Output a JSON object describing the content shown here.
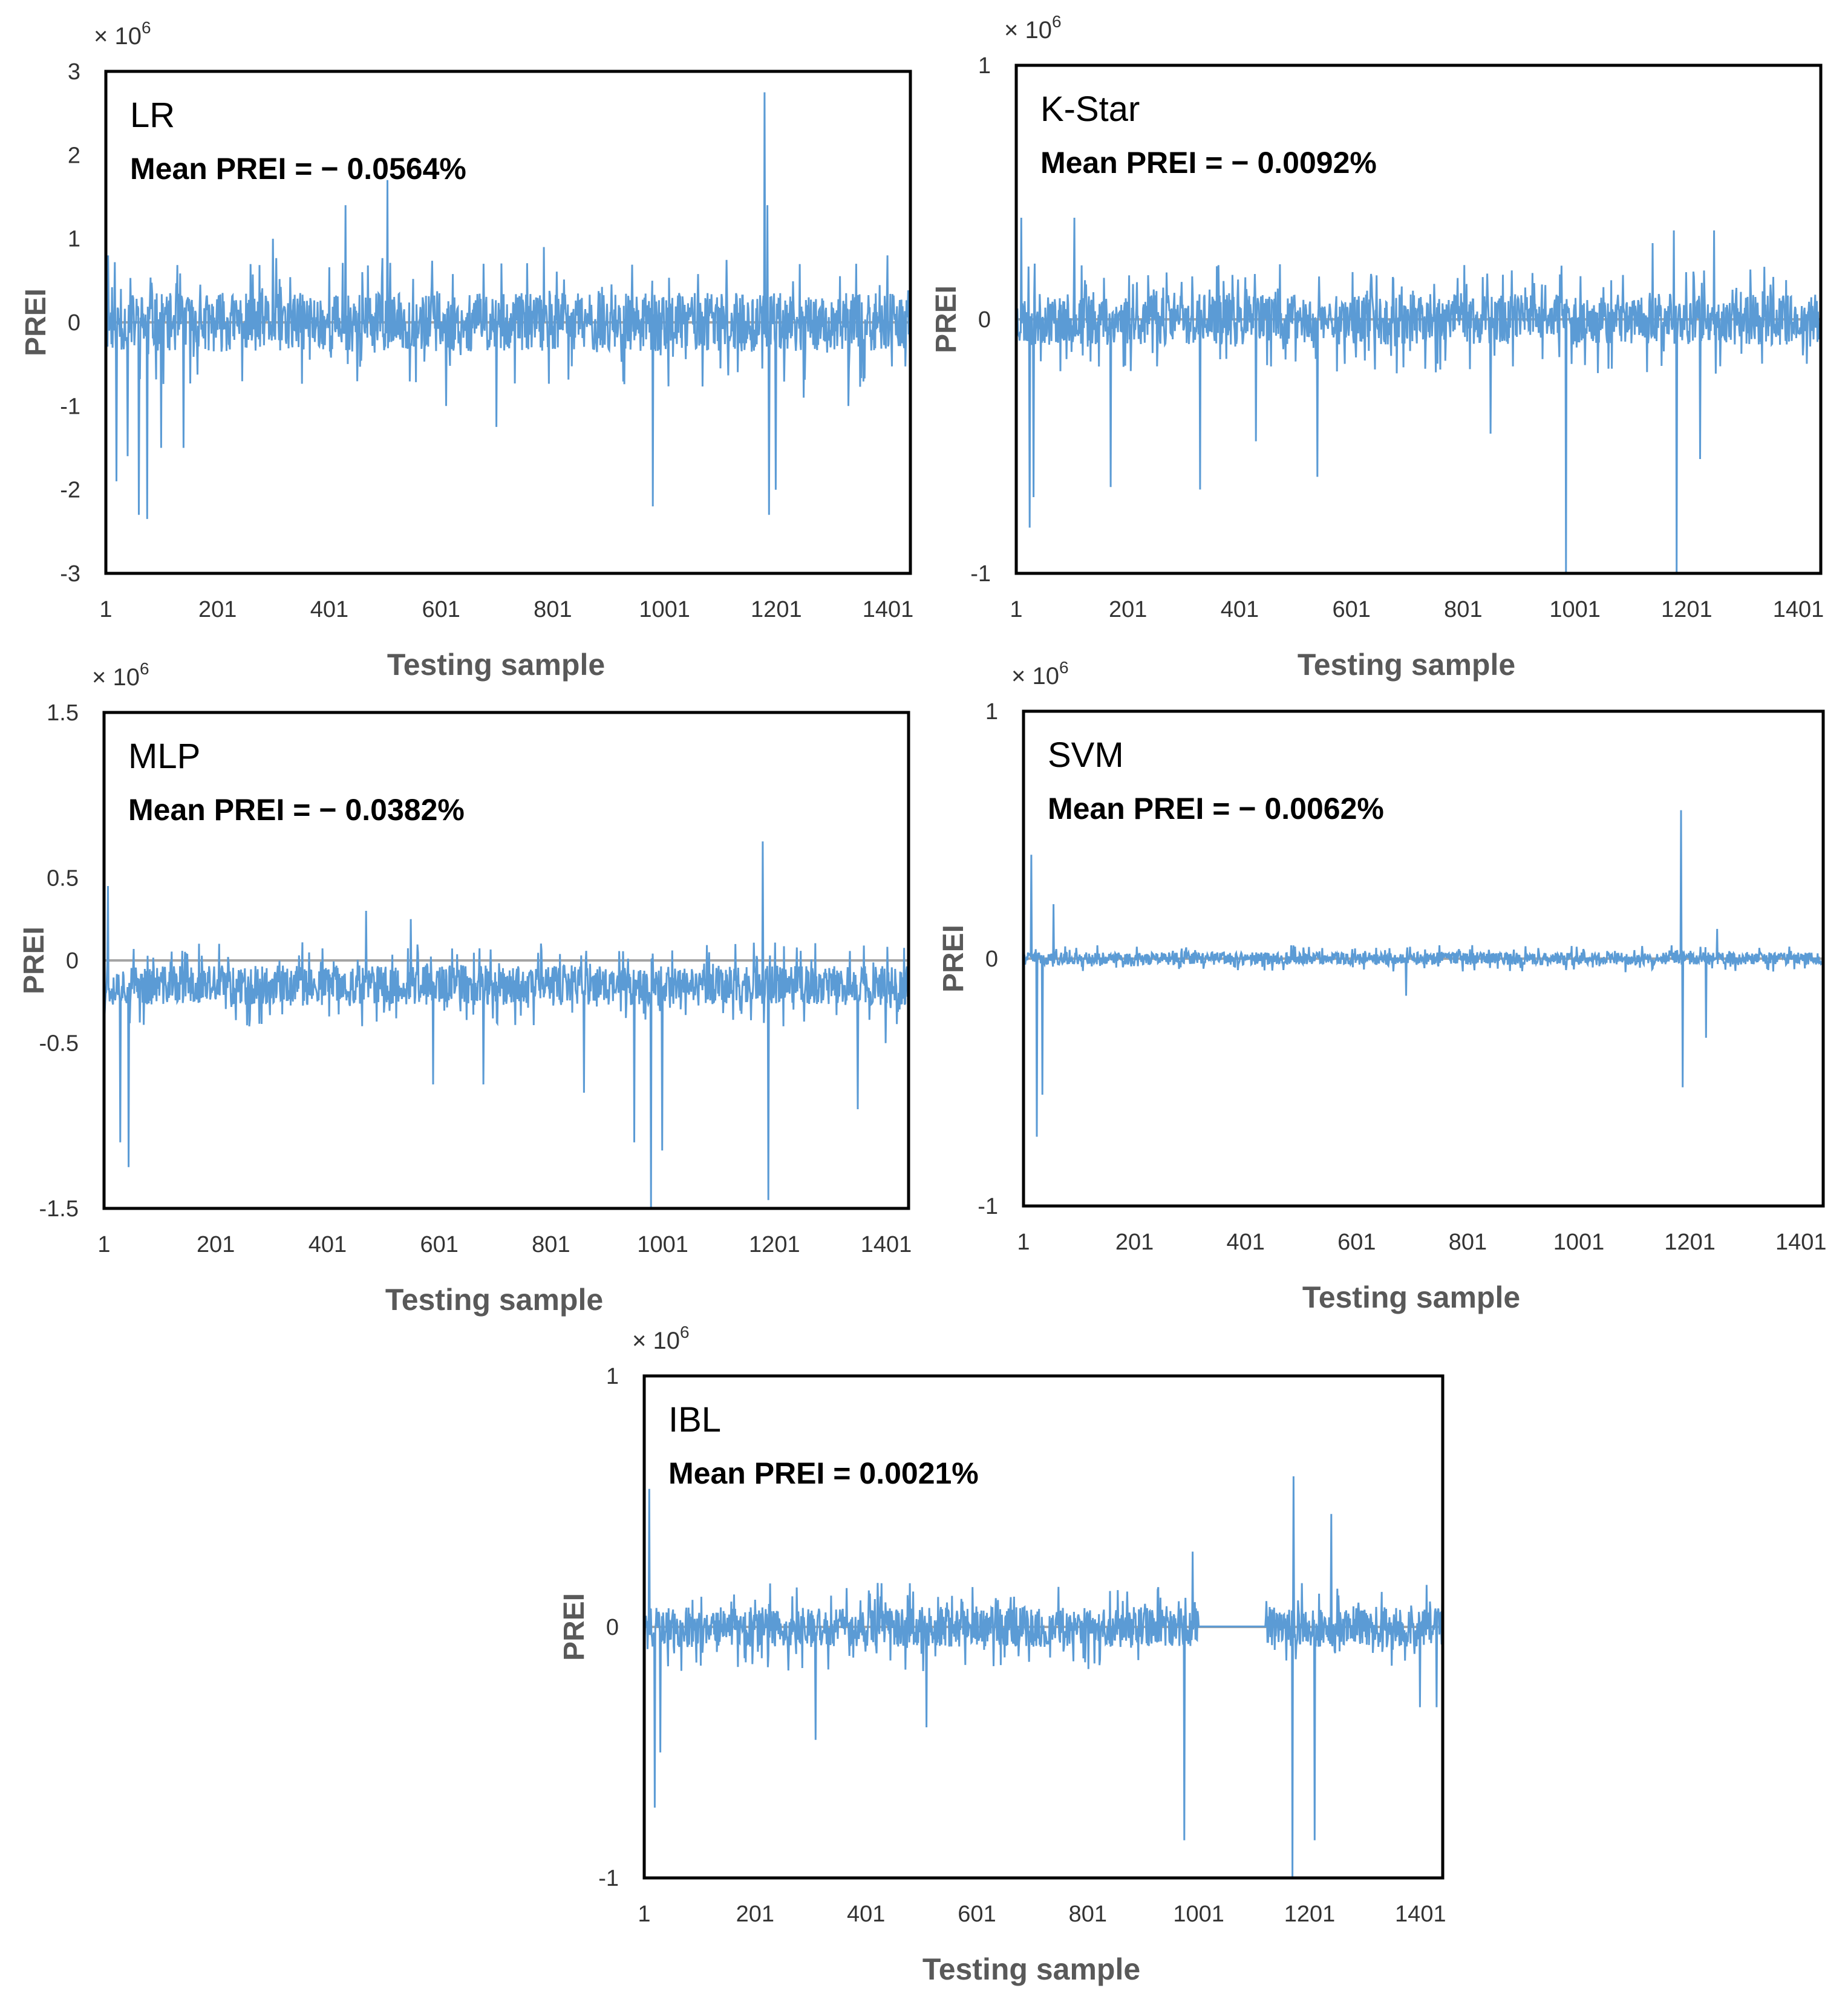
{
  "figure": {
    "background": "#ffffff",
    "line_color": "#5b9bd5",
    "zero_line_color": "#a5a5a5",
    "frame_color": "#000000"
  },
  "chart_data": [
    {
      "id": "lr",
      "type": "line",
      "model": "LR",
      "mean_label": "Mean PREI = − 0.0564%",
      "multiplier": "× 10",
      "multiplier_exp": "6",
      "ylabel": "PREI",
      "xlabel": "Testing sample",
      "ylim": [
        -3,
        3
      ],
      "yticks": [
        "3",
        "2",
        "1",
        "0",
        "-1",
        "-2",
        "-3"
      ],
      "ytick_values": [
        3,
        2,
        1,
        0,
        -1,
        -2,
        -3
      ],
      "xlim": [
        1,
        1441
      ],
      "xticks": [
        "1",
        "201",
        "401",
        "601",
        "801",
        "1001",
        "1201",
        "1401"
      ],
      "xtick_values": [
        1,
        201,
        401,
        601,
        801,
        1001,
        1201,
        1401
      ],
      "series": [
        {
          "name": "PREI",
          "noise_amplitude": 0.35,
          "seed": 11,
          "spikes": [
            [
              5,
              0.8
            ],
            [
              20,
              -1.9
            ],
            [
              40,
              -1.6
            ],
            [
              60,
              -2.3
            ],
            [
              75,
              -2.35
            ],
            [
              100,
              -1.5
            ],
            [
              140,
              -1.5
            ],
            [
              300,
              1.0
            ],
            [
              430,
              1.4
            ],
            [
              460,
              0.6
            ],
            [
              505,
              1.7
            ],
            [
              610,
              -1.0
            ],
            [
              700,
              -1.25
            ],
            [
              785,
              0.9
            ],
            [
              980,
              -2.2
            ],
            [
              1180,
              2.75
            ],
            [
              1185,
              1.4
            ],
            [
              1188,
              -2.3
            ],
            [
              1200,
              -2.0
            ],
            [
              1250,
              -0.9
            ],
            [
              1330,
              -1.0
            ],
            [
              1400,
              0.8
            ]
          ]
        }
      ]
    },
    {
      "id": "kstar",
      "type": "line",
      "model": "K-Star",
      "mean_label": "Mean PREI = − 0.0092%",
      "multiplier": "× 10",
      "multiplier_exp": "6",
      "ylabel": "PREI",
      "xlabel": "Testing sample",
      "ylim": [
        -1,
        1
      ],
      "yticks": [
        "1",
        "0",
        "-1"
      ],
      "ytick_values": [
        1,
        0,
        -1
      ],
      "xlim": [
        1,
        1441
      ],
      "xticks": [
        "1",
        "201",
        "401",
        "601",
        "801",
        "1001",
        "1201",
        "1401"
      ],
      "xtick_values": [
        1,
        201,
        401,
        601,
        801,
        1001,
        1201,
        1401
      ],
      "series": [
        {
          "name": "PREI",
          "noise_amplitude": 0.1,
          "seed": 23,
          "spikes": [
            [
              10,
              0.4
            ],
            [
              25,
              -0.82
            ],
            [
              32,
              -0.7
            ],
            [
              105,
              0.4
            ],
            [
              170,
              -0.66
            ],
            [
              330,
              -0.67
            ],
            [
              430,
              -0.48
            ],
            [
              540,
              -0.62
            ],
            [
              850,
              -0.45
            ],
            [
              985,
              -1.0
            ],
            [
              1178,
              0.35
            ],
            [
              1183,
              -1.0
            ],
            [
              1225,
              -0.55
            ],
            [
              1250,
              0.35
            ],
            [
              1140,
              0.3
            ]
          ]
        }
      ]
    },
    {
      "id": "mlp",
      "type": "line",
      "model": "MLP",
      "mean_label": "Mean PREI = − 0.0382%",
      "multiplier": "× 10",
      "multiplier_exp": "6",
      "ylabel": "PREI",
      "xlabel": "Testing sample",
      "ylim": [
        -1.5,
        1.5
      ],
      "yticks": [
        "1.5",
        "0.5",
        "0",
        "-0.5",
        "-1.5"
      ],
      "ytick_values": [
        1.5,
        0.5,
        0,
        -0.5,
        -1.5
      ],
      "xlim": [
        1,
        1441
      ],
      "xticks": [
        "1",
        "201",
        "401",
        "601",
        "801",
        "1001",
        "1201",
        "1401"
      ],
      "xtick_values": [
        1,
        201,
        401,
        601,
        801,
        1001,
        1201,
        1401
      ],
      "series": [
        {
          "name": "PREI",
          "noise_amplitude": 0.12,
          "baseline": -0.15,
          "seed": 37,
          "spikes": [
            [
              8,
              0.45
            ],
            [
              30,
              -1.1
            ],
            [
              45,
              -1.25
            ],
            [
              470,
              0.3
            ],
            [
              550,
              0.25
            ],
            [
              590,
              -0.75
            ],
            [
              680,
              -0.75
            ],
            [
              860,
              -0.8
            ],
            [
              950,
              -1.1
            ],
            [
              980,
              -1.5
            ],
            [
              1000,
              -1.15
            ],
            [
              1180,
              0.72
            ],
            [
              1190,
              -1.45
            ],
            [
              1350,
              -0.9
            ],
            [
              1400,
              -0.5
            ]
          ]
        }
      ]
    },
    {
      "id": "svm",
      "type": "line",
      "model": "SVM",
      "mean_label": "Mean PREI = − 0.0062%",
      "multiplier": "× 10",
      "multiplier_exp": "6",
      "ylabel": "PREI",
      "xlabel": "Testing sample",
      "ylim": [
        -1,
        1
      ],
      "yticks": [
        "1",
        "0",
        "-1"
      ],
      "ytick_values": [
        1,
        0,
        -1
      ],
      "xlim": [
        1,
        1441
      ],
      "xticks": [
        "1",
        "201",
        "401",
        "601",
        "801",
        "1001",
        "1201",
        "1401"
      ],
      "xtick_values": [
        1,
        201,
        401,
        601,
        801,
        1001,
        1201,
        1401
      ],
      "series": [
        {
          "name": "PREI",
          "noise_amplitude": 0.025,
          "seed": 41,
          "spikes": [
            [
              15,
              0.42
            ],
            [
              25,
              -0.72
            ],
            [
              35,
              -0.55
            ],
            [
              55,
              0.22
            ],
            [
              690,
              -0.15
            ],
            [
              1185,
              0.6
            ],
            [
              1188,
              -0.52
            ],
            [
              1230,
              -0.32
            ],
            [
              1250,
              0.12
            ]
          ]
        }
      ]
    },
    {
      "id": "ibl",
      "type": "line",
      "model": "IBL",
      "mean_label": "Mean PREI = 0.0021%",
      "multiplier": "× 10",
      "multiplier_exp": "6",
      "ylabel": "PREI",
      "xlabel": "Testing sample",
      "ylim": [
        -1,
        1
      ],
      "yticks": [
        "1",
        "0",
        "-1"
      ],
      "ytick_values": [
        1,
        0,
        -1
      ],
      "xlim": [
        1,
        1441
      ],
      "xticks": [
        "1",
        "201",
        "401",
        "601",
        "801",
        "1001",
        "1201",
        "1401"
      ],
      "xtick_values": [
        1,
        201,
        401,
        601,
        801,
        1001,
        1201,
        1401
      ],
      "series": [
        {
          "name": "PREI",
          "noise_amplitude": 0.08,
          "seed": 59,
          "flat_range": [
            1001,
            1121
          ],
          "spikes": [
            [
              10,
              0.55
            ],
            [
              20,
              -0.72
            ],
            [
              30,
              -0.5
            ],
            [
              310,
              -0.45
            ],
            [
              510,
              -0.4
            ],
            [
              975,
              -0.85
            ],
            [
              990,
              0.3
            ],
            [
              1170,
              -1.0
            ],
            [
              1172,
              0.6
            ],
            [
              1210,
              -0.85
            ],
            [
              1240,
              0.45
            ],
            [
              1400,
              -0.32
            ],
            [
              1430,
              -0.32
            ]
          ]
        }
      ]
    }
  ]
}
